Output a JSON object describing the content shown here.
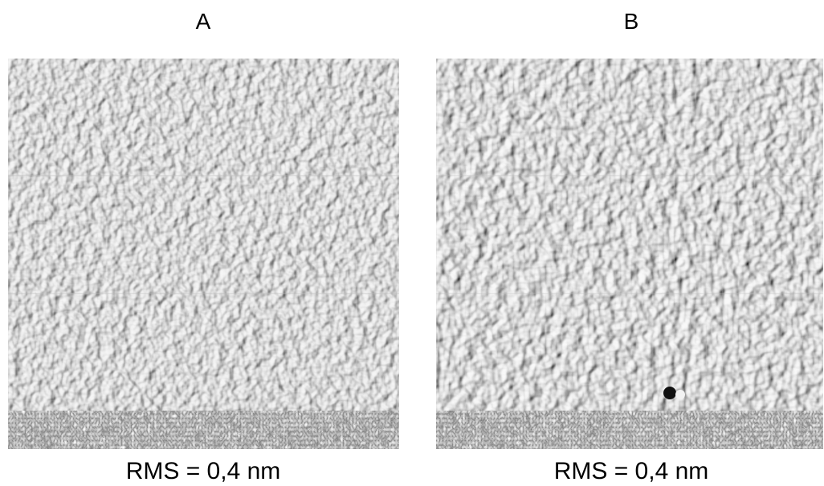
{
  "panels": [
    {
      "label": "A",
      "caption": "RMS = 0,4 nm"
    },
    {
      "label": "B",
      "caption": "RMS = 0,4 nm"
    }
  ]
}
